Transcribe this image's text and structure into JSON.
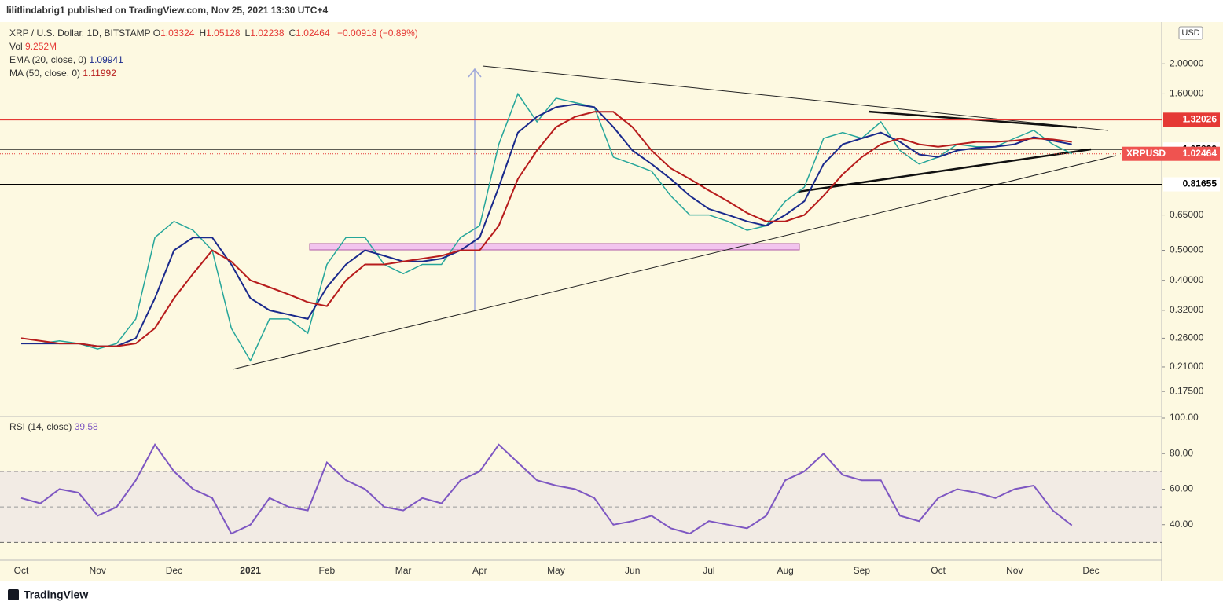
{
  "header": {
    "publisher": "lilitlindabrig1 published on TradingView.com, Nov 25, 2021 13:30 UTC+4",
    "currency": "USD",
    "brand": "TradingView"
  },
  "chart_data": [
    {
      "type": "line",
      "title": "XRP / U.S. Dollar, 1D, BITSTAMP",
      "ohlc": [
        {
          "label": "O",
          "value": "1.03324"
        },
        {
          "label": "H",
          "value": "1.05128"
        },
        {
          "label": "L",
          "value": "1.02238"
        },
        {
          "label": "C",
          "value": "1.02464"
        }
      ],
      "change": "−0.00918 (−0.89%)",
      "volume": {
        "label": "Vol",
        "value": "9.252M"
      },
      "categories": [
        "Oct",
        null,
        null,
        null,
        "Nov",
        null,
        null,
        null,
        "Dec",
        null,
        null,
        null,
        "2021",
        null,
        null,
        null,
        "Feb",
        null,
        null,
        null,
        "Mar",
        null,
        null,
        null,
        "Apr",
        null,
        null,
        null,
        "May",
        null,
        null,
        null,
        "Jun",
        null,
        null,
        null,
        "Jul",
        null,
        null,
        null,
        "Aug",
        null,
        null,
        null,
        "Sep",
        null,
        null,
        null,
        "Oct",
        null,
        null,
        null,
        "Nov",
        null,
        null,
        null,
        "Dec"
      ],
      "series": [
        {
          "name": "XRPUSD",
          "color": "#26a69a",
          "values": [
            0.25,
            0.25,
            0.255,
            0.25,
            0.24,
            0.25,
            0.3,
            0.55,
            0.62,
            0.58,
            0.5,
            0.28,
            0.22,
            0.3,
            0.3,
            0.27,
            0.45,
            0.55,
            0.55,
            0.45,
            0.42,
            0.45,
            0.45,
            0.55,
            0.6,
            1.1,
            1.6,
            1.3,
            1.55,
            1.5,
            1.45,
            1.0,
            0.95,
            0.9,
            0.75,
            0.65,
            0.65,
            0.62,
            0.58,
            0.6,
            0.72,
            0.8,
            1.15,
            1.2,
            1.15,
            1.3,
            1.05,
            0.95,
            1.0,
            1.1,
            1.08,
            1.08,
            1.15,
            1.22,
            1.1,
            1.02464,
            null
          ]
        },
        {
          "name": "EMA (20, close, 0)",
          "color": "#1a2a8c",
          "values": [
            0.25,
            0.25,
            0.25,
            0.25,
            0.245,
            0.245,
            0.26,
            0.35,
            0.5,
            0.55,
            0.55,
            0.45,
            0.35,
            0.32,
            0.31,
            0.3,
            0.38,
            0.45,
            0.5,
            0.48,
            0.46,
            0.46,
            0.47,
            0.5,
            0.55,
            0.8,
            1.2,
            1.35,
            1.45,
            1.48,
            1.45,
            1.25,
            1.05,
            0.95,
            0.85,
            0.75,
            0.68,
            0.65,
            0.62,
            0.6,
            0.65,
            0.72,
            0.95,
            1.1,
            1.15,
            1.2,
            1.12,
            1.02,
            1.0,
            1.05,
            1.07,
            1.08,
            1.1,
            1.16,
            1.13,
            1.09941,
            null
          ]
        },
        {
          "name": "MA (50, close, 0)",
          "color": "#b71c1c",
          "values": [
            0.26,
            0.255,
            0.25,
            0.25,
            0.245,
            0.245,
            0.25,
            0.28,
            0.35,
            0.42,
            0.5,
            0.46,
            0.4,
            0.38,
            0.36,
            0.34,
            0.33,
            0.4,
            0.45,
            0.45,
            0.46,
            0.47,
            0.48,
            0.5,
            0.5,
            0.6,
            0.85,
            1.05,
            1.25,
            1.35,
            1.4,
            1.4,
            1.25,
            1.05,
            0.92,
            0.85,
            0.78,
            0.72,
            0.66,
            0.62,
            0.62,
            0.65,
            0.75,
            0.88,
            1.0,
            1.1,
            1.15,
            1.1,
            1.08,
            1.1,
            1.12,
            1.12,
            1.13,
            1.15,
            1.14,
            1.11992,
            null
          ]
        }
      ],
      "log_scale": true,
      "ylim": [
        0.147,
        2.73
      ],
      "yticks": [
        {
          "value": 2,
          "label": "2.00000"
        },
        {
          "value": 1.6,
          "label": "1.60000"
        },
        {
          "value": 0.65,
          "label": "0.65000"
        },
        {
          "value": 0.5,
          "label": "0.50000"
        },
        {
          "value": 0.4,
          "label": "0.40000"
        },
        {
          "value": 0.32,
          "label": "0.32000"
        },
        {
          "value": 0.26,
          "label": "0.26000"
        },
        {
          "value": 0.21,
          "label": "0.21000"
        },
        {
          "value": 0.175,
          "label": "0.17500"
        }
      ],
      "hlines": [
        {
          "value": 1.32026,
          "color": "#e53935"
        },
        {
          "value": 1.05829,
          "color": "#000000"
        },
        {
          "value": 0.81655,
          "color": "#000000"
        }
      ]
    },
    {
      "type": "line",
      "title": "RSI (14, close)",
      "series": [
        {
          "name": "RSI (14, close)",
          "color": "#7e57c2",
          "values": [
            55,
            52,
            60,
            58,
            45,
            50,
            65,
            85,
            70,
            60,
            55,
            35,
            40,
            55,
            50,
            48,
            75,
            65,
            60,
            50,
            48,
            55,
            52,
            65,
            70,
            85,
            75,
            65,
            62,
            60,
            55,
            40,
            42,
            45,
            38,
            35,
            42,
            40,
            38,
            45,
            65,
            70,
            80,
            68,
            65,
            65,
            45,
            42,
            55,
            60,
            58,
            55,
            60,
            62,
            48,
            39.58,
            null
          ]
        }
      ],
      "ylim": [
        20,
        100
      ],
      "yticks": [
        {
          "value": 100,
          "label": "100.00"
        },
        {
          "value": 80,
          "label": "80.00"
        },
        {
          "value": 60,
          "label": "60.00"
        },
        {
          "value": 40,
          "label": "40.00"
        }
      ],
      "band": [
        30,
        70
      ],
      "midline": 50
    }
  ]
}
